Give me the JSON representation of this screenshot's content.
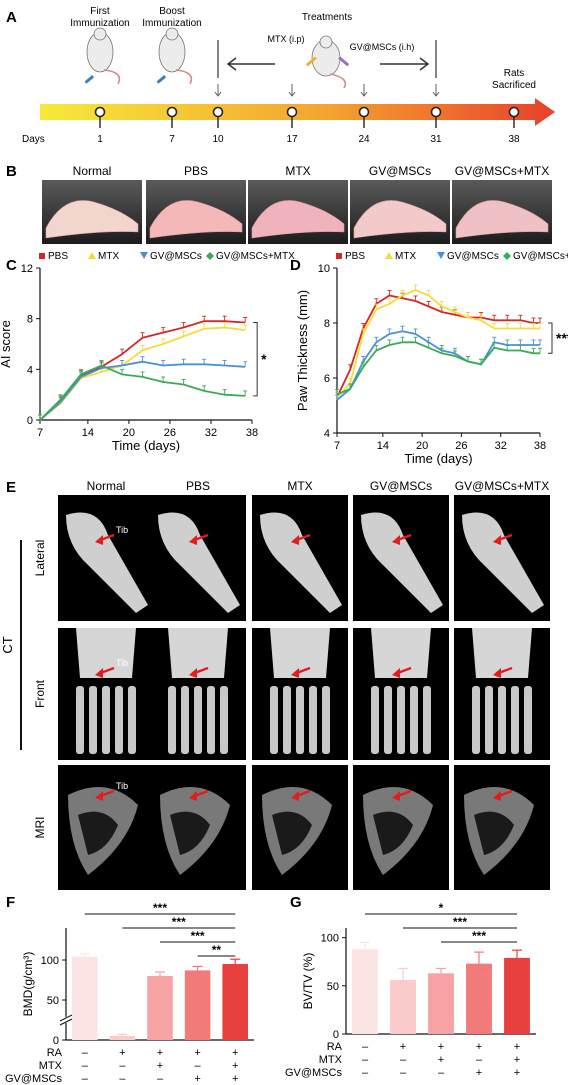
{
  "panelA": {
    "letter": "A",
    "events_top": [
      "First",
      "Immunization",
      "Boost",
      "Immunization"
    ],
    "treatments": "Treatments",
    "mtx": "MTX (i.p)",
    "gv": "GV@MSCs (i.h)",
    "sacrifice": [
      "Rats",
      "Sacrificed"
    ],
    "days_label": "Days",
    "days": [
      "1",
      "7",
      "10",
      "17",
      "24",
      "31",
      "38"
    ]
  },
  "panelB": {
    "letter": "B",
    "groups": [
      "Normal",
      "PBS",
      "MTX",
      "GV@MSCs",
      "GV@MSCs+MTX"
    ]
  },
  "panelE": {
    "letter": "E",
    "groups": [
      "Normal",
      "PBS",
      "MTX",
      "GV@MSCs",
      "GV@MSCs+MTX"
    ],
    "rows": [
      "Lateral",
      "Front",
      "MRI"
    ],
    "ct_label": "CT",
    "tib": "Tib"
  },
  "colors": {
    "PBS": "#d62728",
    "MTX": "#f2dd3c",
    "GV@MSCs": "#4a90d9",
    "GV@MSCs+MTX": "#3aaa55",
    "bar1": "#fde4e4",
    "bar2": "#fbcaca",
    "bar3": "#f7a3a3",
    "bar4": "#f17a7a",
    "bar5": "#e8403f"
  },
  "chart_data": [
    {
      "panel": "C",
      "type": "line",
      "ylabel": "AI score",
      "xlabel": "Time (days)",
      "xticks": [
        7,
        14,
        20,
        26,
        32,
        38
      ],
      "yticks": [
        0,
        4,
        8,
        12
      ],
      "ylim": [
        0,
        12
      ],
      "xlim": [
        7,
        38
      ],
      "x": [
        7,
        10,
        13,
        16,
        19,
        22,
        25,
        28,
        31,
        34,
        37
      ],
      "series": [
        {
          "name": "PBS",
          "values": [
            0,
            1.5,
            3.5,
            4.2,
            5.2,
            6.5,
            6.9,
            7.3,
            7.8,
            7.8,
            7.7
          ]
        },
        {
          "name": "MTX",
          "values": [
            0,
            1.3,
            3.3,
            3.8,
            4.3,
            5.5,
            6.0,
            6.6,
            7.2,
            7.3,
            7.1
          ]
        },
        {
          "name": "GV@MSCs",
          "values": [
            0,
            1.4,
            3.4,
            4.1,
            4.3,
            4.6,
            4.3,
            4.4,
            4.4,
            4.3,
            4.2
          ]
        },
        {
          "name": "GV@MSCs+MTX",
          "values": [
            0,
            1.6,
            3.6,
            4.3,
            3.6,
            3.4,
            3.0,
            2.8,
            2.3,
            2.0,
            1.9
          ]
        }
      ],
      "significance": "*",
      "legend": "top"
    },
    {
      "panel": "D",
      "type": "line",
      "ylabel": "Paw Thickness (mm)",
      "xlabel": "Time (days)",
      "xticks": [
        7,
        14,
        20,
        26,
        32,
        38
      ],
      "yticks": [
        4,
        6,
        8,
        10
      ],
      "ylim": [
        4,
        10
      ],
      "xlim": [
        7,
        38
      ],
      "x": [
        7,
        9,
        11,
        13,
        15,
        17,
        19,
        21,
        23,
        25,
        27,
        29,
        31,
        33,
        35,
        37,
        38
      ],
      "series": [
        {
          "name": "PBS",
          "values": [
            5.3,
            6.3,
            7.8,
            8.7,
            9.0,
            8.9,
            8.8,
            8.6,
            8.4,
            8.3,
            8.2,
            8.2,
            8.1,
            8.1,
            8.1,
            8.0,
            8.0
          ]
        },
        {
          "name": "MTX",
          "values": [
            5.3,
            5.8,
            7.6,
            8.5,
            8.7,
            9.0,
            9.2,
            9.0,
            8.6,
            8.4,
            8.2,
            8.1,
            7.8,
            7.8,
            7.8,
            7.8,
            7.8
          ]
        },
        {
          "name": "GV@MSCs",
          "values": [
            5.2,
            5.6,
            6.6,
            7.3,
            7.6,
            7.7,
            7.6,
            7.3,
            7.0,
            6.9,
            6.6,
            6.5,
            7.3,
            7.2,
            7.2,
            7.2,
            7.2
          ]
        },
        {
          "name": "GV@MSCs+MTX",
          "values": [
            5.4,
            5.6,
            6.4,
            7.0,
            7.2,
            7.3,
            7.3,
            7.1,
            6.9,
            6.8,
            6.6,
            6.5,
            7.1,
            7.0,
            7.0,
            6.9,
            6.9
          ]
        }
      ],
      "significance": "***",
      "legend": "top"
    },
    {
      "panel": "F",
      "type": "bar",
      "ylabel": "BMD(g/cm³)",
      "ylim": [
        0,
        140
      ],
      "yticks": [
        0,
        50,
        100
      ],
      "axis_break": true,
      "values": [
        104,
        5,
        80,
        87,
        95
      ],
      "errors": [
        4,
        2,
        5,
        5,
        6
      ],
      "treatment_rows": [
        {
          "label": "RA",
          "marks": [
            "–",
            "+",
            "+",
            "+",
            "+"
          ]
        },
        {
          "label": "MTX",
          "marks": [
            "–",
            "–",
            "+",
            "–",
            "+"
          ]
        },
        {
          "label": "GV@MSCs",
          "marks": [
            "–",
            "–",
            "–",
            "+",
            "+"
          ]
        }
      ],
      "significance": [
        {
          "from": 1,
          "to": 5,
          "label": "***"
        },
        {
          "from": 2,
          "to": 5,
          "label": "***"
        },
        {
          "from": 3,
          "to": 5,
          "label": "***"
        },
        {
          "from": 4,
          "to": 5,
          "label": "**"
        }
      ]
    },
    {
      "panel": "G",
      "type": "bar",
      "ylabel": "BV/TV (%)",
      "ylim": [
        0,
        110
      ],
      "yticks": [
        0,
        50,
        100
      ],
      "values": [
        88,
        56,
        63,
        73,
        79
      ],
      "errors": [
        7,
        12,
        5,
        12,
        8
      ],
      "treatment_rows": [
        {
          "label": "RA",
          "marks": [
            "–",
            "+",
            "+",
            "+",
            "+"
          ]
        },
        {
          "label": "MTX",
          "marks": [
            "–",
            "–",
            "+",
            "–",
            "+"
          ]
        },
        {
          "label": "GV@MSCs",
          "marks": [
            "–",
            "–",
            "–",
            "+",
            "+"
          ]
        }
      ],
      "significance": [
        {
          "from": 1,
          "to": 5,
          "label": "*"
        },
        {
          "from": 2,
          "to": 5,
          "label": "***"
        },
        {
          "from": 3,
          "to": 5,
          "label": "***"
        }
      ]
    }
  ]
}
